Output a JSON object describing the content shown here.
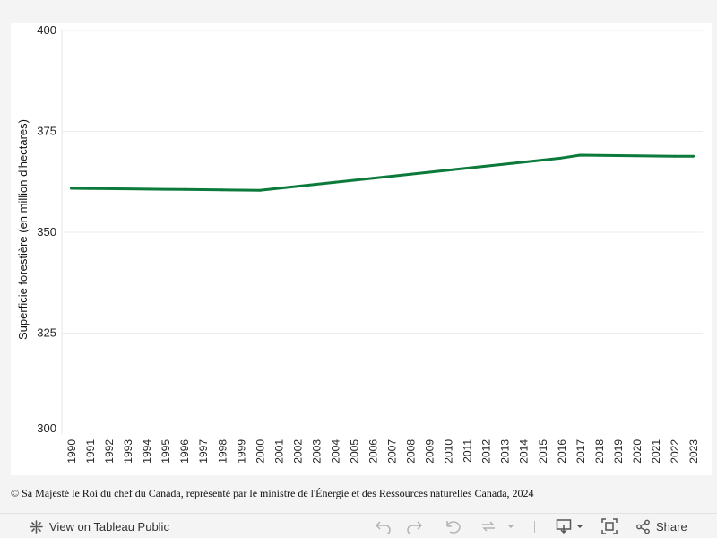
{
  "chart_data": {
    "type": "line",
    "title": "",
    "xlabel": "",
    "ylabel": "Superficie forestière (en million d'hectares)",
    "ylim": [
      300,
      400
    ],
    "yticks": [
      "300",
      "325",
      "350",
      "375",
      "400"
    ],
    "grid": true,
    "legend": "none",
    "x": [
      "1990",
      "1991",
      "1992",
      "1993",
      "1994",
      "1995",
      "1996",
      "1997",
      "1998",
      "1999",
      "2000",
      "2001",
      "2002",
      "2003",
      "2004",
      "2005",
      "2006",
      "2007",
      "2008",
      "2009",
      "2010",
      "2011",
      "2012",
      "2013",
      "2014",
      "2015",
      "2016",
      "2017",
      "2018",
      "2019",
      "2020",
      "2021",
      "2022",
      "2023"
    ],
    "series": [
      {
        "color": "#0b7a3b",
        "values": [
          360.9,
          360.85,
          360.8,
          360.75,
          360.7,
          360.65,
          360.6,
          360.55,
          360.5,
          360.45,
          360.4,
          360.9,
          361.4,
          361.9,
          362.4,
          362.9,
          363.4,
          363.9,
          364.4,
          364.9,
          365.4,
          365.9,
          366.4,
          366.9,
          367.4,
          367.9,
          368.4,
          369.1,
          369.05,
          369.0,
          368.95,
          368.9,
          368.85,
          368.85
        ]
      }
    ]
  },
  "footer": {
    "copyright": "© Sa Majesté le Roi du chef du Canada, représenté par le ministre de l'Énergie et des Ressources naturelles Canada, 2024"
  },
  "toolbar": {
    "view_label": "View on Tableau Public",
    "share_label": "Share",
    "icons": [
      "tableau-icon",
      "undo-icon",
      "redo-icon",
      "revert-icon",
      "refresh-icon",
      "download-icon",
      "fullscreen-icon",
      "share-icon"
    ]
  },
  "colors": {
    "line": "#0b7a3b",
    "grid": "#ececec",
    "background": "#f4f4f4"
  }
}
